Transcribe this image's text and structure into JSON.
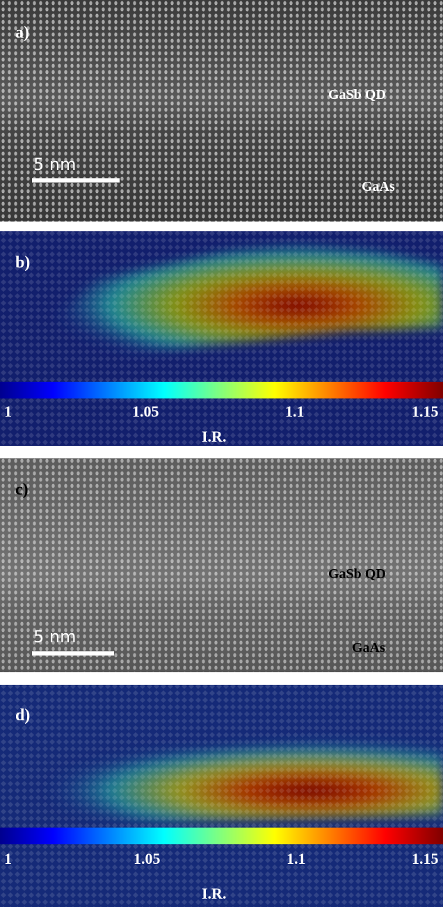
{
  "panels": [
    {
      "label": "a)",
      "region": "GaSb QD",
      "substrate": "GaAs",
      "scale_bar": "5 nm"
    },
    {
      "label": "b)",
      "colorbar": {
        "ticks": [
          "1",
          "1.05",
          "1.1",
          "1.15"
        ],
        "title": "I.R."
      }
    },
    {
      "label": "c)",
      "region": "GaSb QD",
      "substrate": "GaAs",
      "scale_bar": "5 nm"
    },
    {
      "label": "d)",
      "colorbar": {
        "ticks": [
          "1",
          "1.05",
          "1.1",
          "1.15"
        ],
        "title": "I.R."
      }
    }
  ]
}
